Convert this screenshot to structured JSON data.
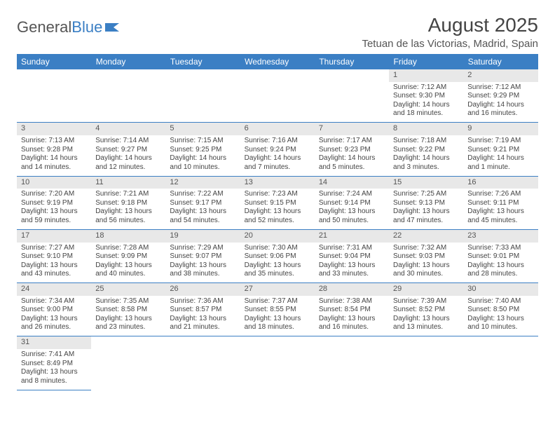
{
  "logo": {
    "text1": "General",
    "text2": "Blue"
  },
  "title": "August 2025",
  "subtitle": "Tetuan de las Victorias, Madrid, Spain",
  "columns": [
    "Sunday",
    "Monday",
    "Tuesday",
    "Wednesday",
    "Thursday",
    "Friday",
    "Saturday"
  ],
  "colors": {
    "header_bg": "#3b7fc4",
    "header_text": "#ffffff",
    "daynum_bg": "#e8e8e8",
    "border": "#3b7fc4",
    "text": "#444444",
    "background": "#ffffff"
  },
  "typography": {
    "title_fontsize": 28,
    "subtitle_fontsize": 15,
    "header_fontsize": 12,
    "cell_fontsize": 10,
    "daynum_fontsize": 11
  },
  "weeks": [
    {
      "nums": [
        "",
        "",
        "",
        "",
        "",
        "1",
        "2"
      ],
      "cells": [
        null,
        null,
        null,
        null,
        null,
        {
          "sunrise": "Sunrise: 7:12 AM",
          "sunset": "Sunset: 9:30 PM",
          "day1": "Daylight: 14 hours",
          "day2": "and 18 minutes."
        },
        {
          "sunrise": "Sunrise: 7:12 AM",
          "sunset": "Sunset: 9:29 PM",
          "day1": "Daylight: 14 hours",
          "day2": "and 16 minutes."
        }
      ]
    },
    {
      "nums": [
        "3",
        "4",
        "5",
        "6",
        "7",
        "8",
        "9"
      ],
      "cells": [
        {
          "sunrise": "Sunrise: 7:13 AM",
          "sunset": "Sunset: 9:28 PM",
          "day1": "Daylight: 14 hours",
          "day2": "and 14 minutes."
        },
        {
          "sunrise": "Sunrise: 7:14 AM",
          "sunset": "Sunset: 9:27 PM",
          "day1": "Daylight: 14 hours",
          "day2": "and 12 minutes."
        },
        {
          "sunrise": "Sunrise: 7:15 AM",
          "sunset": "Sunset: 9:25 PM",
          "day1": "Daylight: 14 hours",
          "day2": "and 10 minutes."
        },
        {
          "sunrise": "Sunrise: 7:16 AM",
          "sunset": "Sunset: 9:24 PM",
          "day1": "Daylight: 14 hours",
          "day2": "and 7 minutes."
        },
        {
          "sunrise": "Sunrise: 7:17 AM",
          "sunset": "Sunset: 9:23 PM",
          "day1": "Daylight: 14 hours",
          "day2": "and 5 minutes."
        },
        {
          "sunrise": "Sunrise: 7:18 AM",
          "sunset": "Sunset: 9:22 PM",
          "day1": "Daylight: 14 hours",
          "day2": "and 3 minutes."
        },
        {
          "sunrise": "Sunrise: 7:19 AM",
          "sunset": "Sunset: 9:21 PM",
          "day1": "Daylight: 14 hours",
          "day2": "and 1 minute."
        }
      ]
    },
    {
      "nums": [
        "10",
        "11",
        "12",
        "13",
        "14",
        "15",
        "16"
      ],
      "cells": [
        {
          "sunrise": "Sunrise: 7:20 AM",
          "sunset": "Sunset: 9:19 PM",
          "day1": "Daylight: 13 hours",
          "day2": "and 59 minutes."
        },
        {
          "sunrise": "Sunrise: 7:21 AM",
          "sunset": "Sunset: 9:18 PM",
          "day1": "Daylight: 13 hours",
          "day2": "and 56 minutes."
        },
        {
          "sunrise": "Sunrise: 7:22 AM",
          "sunset": "Sunset: 9:17 PM",
          "day1": "Daylight: 13 hours",
          "day2": "and 54 minutes."
        },
        {
          "sunrise": "Sunrise: 7:23 AM",
          "sunset": "Sunset: 9:15 PM",
          "day1": "Daylight: 13 hours",
          "day2": "and 52 minutes."
        },
        {
          "sunrise": "Sunrise: 7:24 AM",
          "sunset": "Sunset: 9:14 PM",
          "day1": "Daylight: 13 hours",
          "day2": "and 50 minutes."
        },
        {
          "sunrise": "Sunrise: 7:25 AM",
          "sunset": "Sunset: 9:13 PM",
          "day1": "Daylight: 13 hours",
          "day2": "and 47 minutes."
        },
        {
          "sunrise": "Sunrise: 7:26 AM",
          "sunset": "Sunset: 9:11 PM",
          "day1": "Daylight: 13 hours",
          "day2": "and 45 minutes."
        }
      ]
    },
    {
      "nums": [
        "17",
        "18",
        "19",
        "20",
        "21",
        "22",
        "23"
      ],
      "cells": [
        {
          "sunrise": "Sunrise: 7:27 AM",
          "sunset": "Sunset: 9:10 PM",
          "day1": "Daylight: 13 hours",
          "day2": "and 43 minutes."
        },
        {
          "sunrise": "Sunrise: 7:28 AM",
          "sunset": "Sunset: 9:09 PM",
          "day1": "Daylight: 13 hours",
          "day2": "and 40 minutes."
        },
        {
          "sunrise": "Sunrise: 7:29 AM",
          "sunset": "Sunset: 9:07 PM",
          "day1": "Daylight: 13 hours",
          "day2": "and 38 minutes."
        },
        {
          "sunrise": "Sunrise: 7:30 AM",
          "sunset": "Sunset: 9:06 PM",
          "day1": "Daylight: 13 hours",
          "day2": "and 35 minutes."
        },
        {
          "sunrise": "Sunrise: 7:31 AM",
          "sunset": "Sunset: 9:04 PM",
          "day1": "Daylight: 13 hours",
          "day2": "and 33 minutes."
        },
        {
          "sunrise": "Sunrise: 7:32 AM",
          "sunset": "Sunset: 9:03 PM",
          "day1": "Daylight: 13 hours",
          "day2": "and 30 minutes."
        },
        {
          "sunrise": "Sunrise: 7:33 AM",
          "sunset": "Sunset: 9:01 PM",
          "day1": "Daylight: 13 hours",
          "day2": "and 28 minutes."
        }
      ]
    },
    {
      "nums": [
        "24",
        "25",
        "26",
        "27",
        "28",
        "29",
        "30"
      ],
      "cells": [
        {
          "sunrise": "Sunrise: 7:34 AM",
          "sunset": "Sunset: 9:00 PM",
          "day1": "Daylight: 13 hours",
          "day2": "and 26 minutes."
        },
        {
          "sunrise": "Sunrise: 7:35 AM",
          "sunset": "Sunset: 8:58 PM",
          "day1": "Daylight: 13 hours",
          "day2": "and 23 minutes."
        },
        {
          "sunrise": "Sunrise: 7:36 AM",
          "sunset": "Sunset: 8:57 PM",
          "day1": "Daylight: 13 hours",
          "day2": "and 21 minutes."
        },
        {
          "sunrise": "Sunrise: 7:37 AM",
          "sunset": "Sunset: 8:55 PM",
          "day1": "Daylight: 13 hours",
          "day2": "and 18 minutes."
        },
        {
          "sunrise": "Sunrise: 7:38 AM",
          "sunset": "Sunset: 8:54 PM",
          "day1": "Daylight: 13 hours",
          "day2": "and 16 minutes."
        },
        {
          "sunrise": "Sunrise: 7:39 AM",
          "sunset": "Sunset: 8:52 PM",
          "day1": "Daylight: 13 hours",
          "day2": "and 13 minutes."
        },
        {
          "sunrise": "Sunrise: 7:40 AM",
          "sunset": "Sunset: 8:50 PM",
          "day1": "Daylight: 13 hours",
          "day2": "and 10 minutes."
        }
      ]
    },
    {
      "nums": [
        "31",
        "",
        "",
        "",
        "",
        "",
        ""
      ],
      "cells": [
        {
          "sunrise": "Sunrise: 7:41 AM",
          "sunset": "Sunset: 8:49 PM",
          "day1": "Daylight: 13 hours",
          "day2": "and 8 minutes."
        },
        null,
        null,
        null,
        null,
        null,
        null
      ]
    }
  ]
}
